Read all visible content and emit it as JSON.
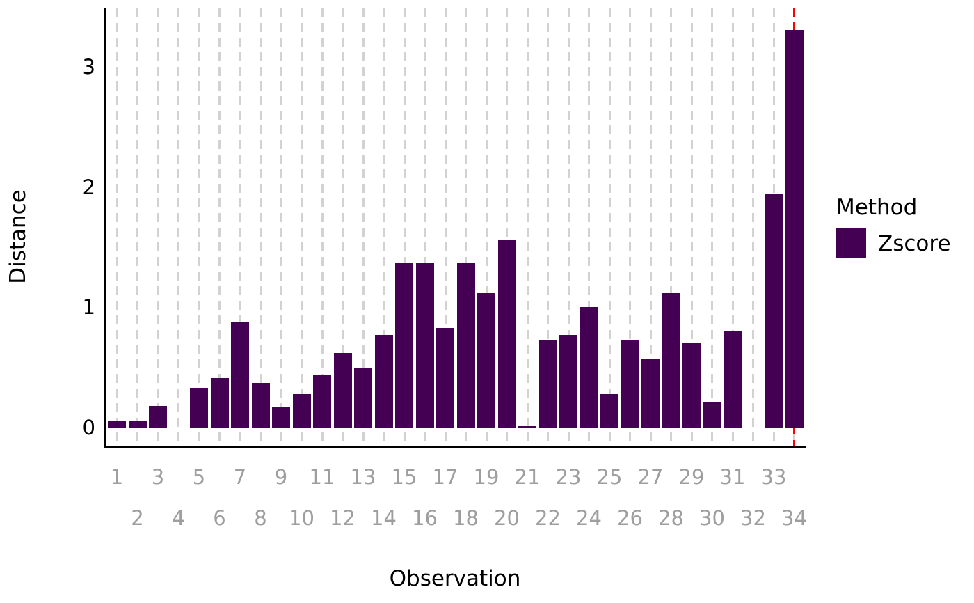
{
  "chart_data": {
    "type": "bar",
    "title": "",
    "xlabel": "Observation",
    "ylabel": "Distance",
    "categories": [
      1,
      2,
      3,
      4,
      5,
      6,
      7,
      8,
      9,
      10,
      11,
      12,
      13,
      14,
      15,
      16,
      17,
      18,
      19,
      20,
      21,
      22,
      23,
      24,
      25,
      26,
      27,
      28,
      29,
      30,
      31,
      32,
      33,
      34
    ],
    "values": [
      0.05,
      0.05,
      0.18,
      0,
      0.33,
      0.41,
      0.88,
      0.37,
      0.17,
      0.28,
      0.44,
      0.62,
      0.5,
      0.77,
      1.37,
      1.37,
      0.83,
      1.37,
      1.12,
      1.56,
      0.01,
      0.73,
      0.77,
      1.0,
      0.28,
      0.73,
      0.57,
      1.12,
      0.7,
      0.21,
      0.8,
      0,
      1.94,
      3.31
    ],
    "ylim": [
      0,
      3.49
    ],
    "yticks": [
      0,
      1,
      2,
      3
    ],
    "xticks_row_odd": [
      1,
      3,
      5,
      7,
      9,
      11,
      13,
      15,
      17,
      19,
      21,
      23,
      25,
      27,
      29,
      31,
      33
    ],
    "xticks_row_even": [
      2,
      4,
      6,
      8,
      10,
      12,
      14,
      16,
      18,
      20,
      22,
      24,
      26,
      28,
      30,
      32,
      34
    ],
    "grid": "vertical dashed gridline at every observation",
    "legend": {
      "title": "Method",
      "position": "right",
      "entries": [
        {
          "label": "Zscore",
          "color": "#440154"
        }
      ]
    },
    "reference_line": {
      "axis": "x",
      "value": 34,
      "color": "#FF0000",
      "style": "dashed"
    },
    "colors": {
      "bar": "#440154",
      "vline": "#FF0000",
      "grid": "#D2D2D2",
      "x_tick_text": "#9E9E9E",
      "y_tick_text": "#000000",
      "axis_line": "#000000"
    }
  }
}
